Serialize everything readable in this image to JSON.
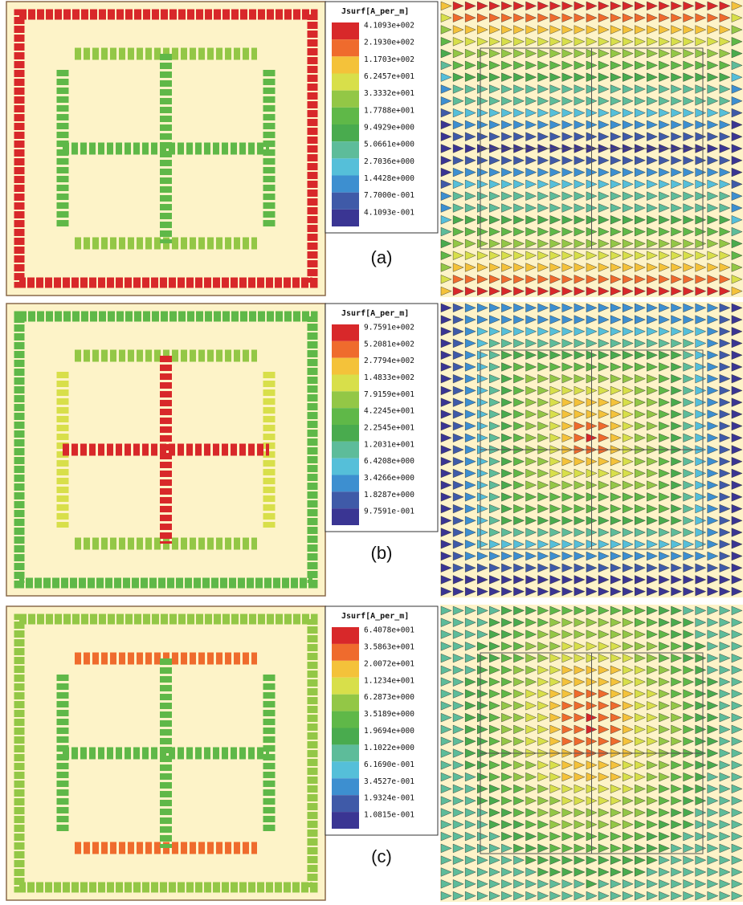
{
  "panels": [
    {
      "legend": {
        "title": "Jsurf[A_per_m]",
        "labels": [
          "4.1093e+002",
          "2.1930e+002",
          "1.1703e+002",
          "6.2457e+001",
          "3.3332e+001",
          "1.7788e+001",
          "9.4929e+000",
          "5.0661e+000",
          "2.7036e+000",
          "1.4428e+000",
          "7.7000e-001",
          "4.1093e-001"
        ]
      },
      "caption": "(a)"
    },
    {
      "legend": {
        "title": "Jsurf[A_per_m]",
        "labels": [
          "9.7591e+002",
          "5.2081e+002",
          "2.7794e+002",
          "1.4833e+002",
          "7.9159e+001",
          "4.2245e+001",
          "2.2545e+001",
          "1.2031e+001",
          "6.4208e+000",
          "3.4266e+000",
          "1.8287e+000",
          "9.7591e-001"
        ]
      },
      "caption": "(b)"
    },
    {
      "legend": {
        "title": "Jsurf[A_per_m]",
        "labels": [
          "6.4078e+001",
          "3.5863e+001",
          "2.0072e+001",
          "1.1234e+001",
          "6.2873e+000",
          "3.5189e+000",
          "1.9694e+000",
          "1.1022e+000",
          "6.1690e-001",
          "3.4527e-001",
          "1.9324e-001",
          "1.0815e-001"
        ]
      },
      "caption": "(c)"
    }
  ]
}
